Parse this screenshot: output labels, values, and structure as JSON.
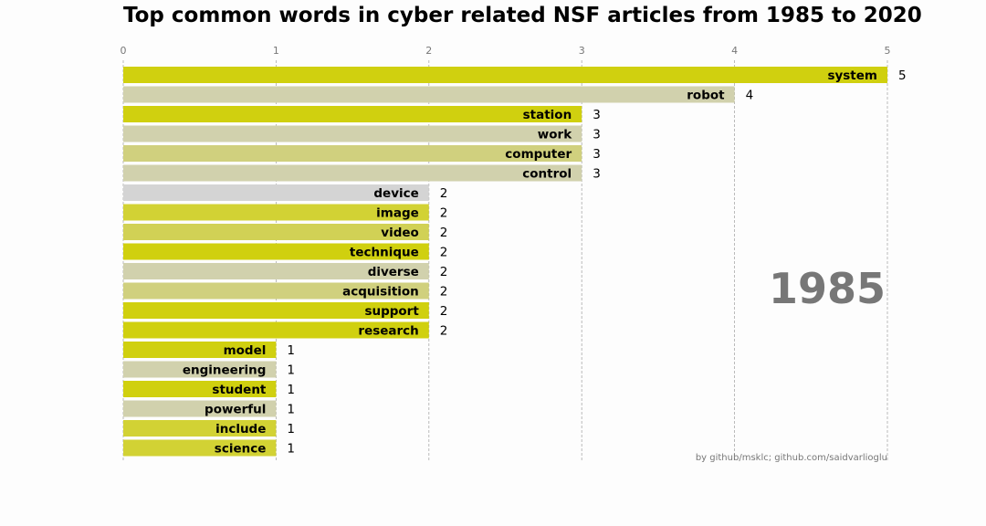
{
  "chart_data": {
    "type": "bar",
    "orientation": "horizontal",
    "title": "Top common words in cyber related NSF articles from 1985 to 2020",
    "xlabel": "",
    "ylabel": "",
    "xlim": [
      0,
      5
    ],
    "x_ticks": [
      "0",
      "1",
      "2",
      "3",
      "4",
      "5"
    ],
    "grid": "vertical dashed",
    "year": "1985",
    "credit": "by github/msklc; github.com/saidvarlioglu",
    "bars": [
      {
        "label": "system",
        "value": 5,
        "color": "#d0d00f"
      },
      {
        "label": "robot",
        "value": 4,
        "color": "#d1d1ad"
      },
      {
        "label": "station",
        "value": 3,
        "color": "#d0d00f"
      },
      {
        "label": "work",
        "value": 3,
        "color": "#d1d1ad"
      },
      {
        "label": "computer",
        "value": 3,
        "color": "#d0d07e"
      },
      {
        "label": "control",
        "value": 3,
        "color": "#d1d1ad"
      },
      {
        "label": "device",
        "value": 2,
        "color": "#d4d4d4"
      },
      {
        "label": "image",
        "value": 2,
        "color": "#d2d234"
      },
      {
        "label": "video",
        "value": 2,
        "color": "#d1d155"
      },
      {
        "label": "technique",
        "value": 2,
        "color": "#d0d00f"
      },
      {
        "label": "diverse",
        "value": 2,
        "color": "#d1d1ad"
      },
      {
        "label": "acquisition",
        "value": 2,
        "color": "#d0d07e"
      },
      {
        "label": "support",
        "value": 2,
        "color": "#d0d00f"
      },
      {
        "label": "research",
        "value": 2,
        "color": "#d0d00f"
      },
      {
        "label": "model",
        "value": 1,
        "color": "#d0d00f"
      },
      {
        "label": "engineering",
        "value": 1,
        "color": "#d1d1ad"
      },
      {
        "label": "student",
        "value": 1,
        "color": "#d0d00f"
      },
      {
        "label": "powerful",
        "value": 1,
        "color": "#d1d1ad"
      },
      {
        "label": "include",
        "value": 1,
        "color": "#d2d234"
      },
      {
        "label": "science",
        "value": 1,
        "color": "#d2d234"
      }
    ]
  }
}
